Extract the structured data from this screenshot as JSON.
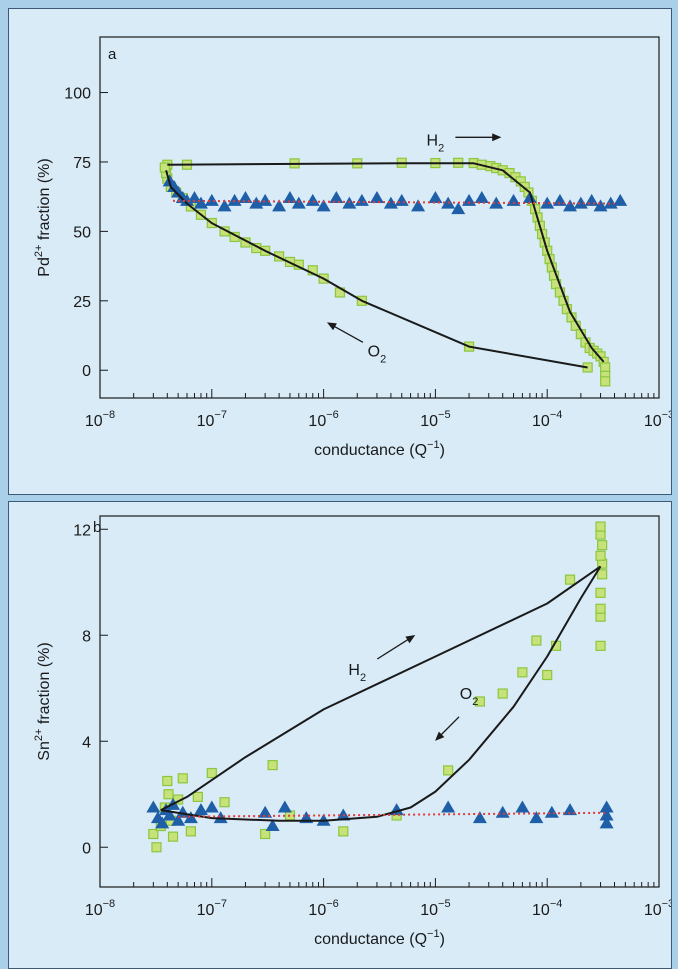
{
  "colors": {
    "background": "#a9cfe9",
    "panel": "#d8ebf7",
    "square_fill": "#c8e27a",
    "square_stroke": "#8cc63f",
    "triangle": "#1f5fa8",
    "fit_black": "#1a1a1a",
    "fit_red": "#e03a3a"
  },
  "chart_data": [
    {
      "panel_label": "a",
      "type": "scatter",
      "x_scale": "log",
      "xlim": [
        "1e-8",
        "1e-3"
      ],
      "ylim": [
        -10,
        120
      ],
      "yticks": [
        0,
        25,
        50,
        75,
        100
      ],
      "ylabel_pre": "Pd",
      "ylabel_sup": "2+",
      "ylabel_post": " fraction (%)",
      "xlabel_pre": "conductance (Q",
      "xlabel_sup": "−1",
      "xlabel_post": ")",
      "xtick_labels": [
        {
          "base": "10",
          "exp": "−8",
          "x": "1e-8"
        },
        {
          "base": "10",
          "exp": "−7",
          "x": "1e-7"
        },
        {
          "base": "10",
          "exp": "−6",
          "x": "1e-6"
        },
        {
          "base": "10",
          "exp": "−5",
          "x": "1e-5"
        },
        {
          "base": "10",
          "exp": "−4",
          "x": "1e-4"
        },
        {
          "base": "10",
          "exp": "−3",
          "x": "1e-3"
        }
      ],
      "annotations": [
        {
          "label_base": "H",
          "label_sub": "2",
          "at": [
            "1e-5",
            81
          ],
          "arrow": "right"
        },
        {
          "label_base": "O",
          "label_sub": "2",
          "at": [
            "3e-6",
            5
          ],
          "arrow": "up-left"
        }
      ],
      "series": [
        {
          "marker": "square",
          "points": [
            [
              "4e-8",
              74
            ],
            [
              "6e-8",
              74
            ],
            [
              "5.5e-7",
              74.5
            ],
            [
              "2e-6",
              74.5
            ],
            [
              "5e-6",
              74.7
            ],
            [
              "1e-5",
              74.6
            ],
            [
              "1.6e-5",
              74.7
            ],
            [
              "2.2e-5",
              74.6
            ],
            [
              "2.6e-5",
              74
            ],
            [
              "3.1e-5",
              73.5
            ],
            [
              "3.5e-5",
              72.8
            ],
            [
              "4e-5",
              72
            ],
            [
              "4.6e-5",
              71
            ],
            [
              "5.2e-5",
              69.5
            ],
            [
              "5.8e-5",
              68
            ],
            [
              "6.3e-5",
              66
            ],
            [
              "6.8e-5",
              64
            ],
            [
              "7.3e-5",
              61
            ],
            [
              "7.8e-5",
              58
            ],
            [
              "8.2e-5",
              55
            ],
            [
              "8.6e-5",
              52
            ],
            [
              "9e-5",
              49
            ],
            [
              "9.5e-5",
              46
            ],
            [
              "1e-4",
              43
            ],
            [
              "1.05e-4",
              40
            ],
            [
              "1.1e-4",
              37
            ],
            [
              "1.15e-4",
              34
            ],
            [
              "1.2e-4",
              31
            ],
            [
              "1.3e-4",
              28
            ],
            [
              "1.4e-4",
              25
            ],
            [
              "1.5e-4",
              22
            ],
            [
              "1.65e-4",
              19
            ],
            [
              "1.8e-4",
              16
            ],
            [
              "2e-4",
              13
            ],
            [
              "2.2e-4",
              10
            ],
            [
              "2.4e-4",
              8
            ],
            [
              "2.6e-4",
              7
            ],
            [
              "2.8e-4",
              6
            ],
            [
              "3e-4",
              5
            ],
            [
              "3.2e-4",
              3
            ],
            [
              "3.3e-4",
              1
            ],
            [
              "3.3e-4",
              -2
            ],
            [
              "3.3e-4",
              -4
            ],
            [
              "2.3e-4",
              1
            ],
            [
              "2e-5",
              8.5
            ],
            [
              "2.2e-6",
              25
            ],
            [
              "1.4e-6",
              28
            ],
            [
              "1e-6",
              33
            ],
            [
              "8e-7",
              36
            ],
            [
              "6e-7",
              38
            ],
            [
              "5e-7",
              39
            ],
            [
              "4e-7",
              41
            ],
            [
              "3e-7",
              43
            ],
            [
              "2.5e-7",
              44
            ],
            [
              "2e-7",
              46
            ],
            [
              "1.6e-7",
              48
            ],
            [
              "1.3e-7",
              50
            ],
            [
              "1e-7",
              53
            ],
            [
              "8e-8",
              56
            ],
            [
              "6.5e-8",
              59
            ],
            [
              "5.5e-8",
              62
            ],
            [
              "4.8e-8",
              64
            ],
            [
              "4.3e-8",
              66
            ],
            [
              "4e-8",
              69
            ],
            [
              "3.9e-8",
              71
            ],
            [
              "3.8e-8",
              73
            ]
          ]
        },
        {
          "marker": "triangle",
          "points": [
            [
              "4.2e-8",
              68
            ],
            [
              "4.6e-8",
              66
            ],
            [
              "5e-8",
              64
            ],
            [
              "5.5e-8",
              62
            ],
            [
              "6e-8",
              61
            ],
            [
              "7e-8",
              62
            ],
            [
              "8e-8",
              60
            ],
            [
              "1e-7",
              61
            ],
            [
              "1.3e-7",
              59
            ],
            [
              "1.6e-7",
              61
            ],
            [
              "2e-7",
              62
            ],
            [
              "2.5e-7",
              60
            ],
            [
              "3e-7",
              61
            ],
            [
              "4e-7",
              59
            ],
            [
              "5e-7",
              62
            ],
            [
              "6e-7",
              60
            ],
            [
              "8e-7",
              61
            ],
            [
              "1e-6",
              59
            ],
            [
              "1.3e-6",
              62
            ],
            [
              "1.7e-6",
              60
            ],
            [
              "2.2e-6",
              61
            ],
            [
              "3e-6",
              62
            ],
            [
              "4e-6",
              60
            ],
            [
              "5e-6",
              61
            ],
            [
              "7e-6",
              59
            ],
            [
              "1e-5",
              62
            ],
            [
              "1.3e-5",
              60
            ],
            [
              "1.6e-5",
              58
            ],
            [
              "2e-5",
              61
            ],
            [
              "2.6e-5",
              62
            ],
            [
              "3.5e-5",
              60
            ],
            [
              "5e-5",
              61
            ],
            [
              "7e-5",
              62
            ],
            [
              "1e-4",
              60
            ],
            [
              "1.3e-4",
              61
            ],
            [
              "1.6e-4",
              59
            ],
            [
              "2e-4",
              60
            ],
            [
              "2.5e-4",
              61
            ],
            [
              "3e-4",
              59
            ],
            [
              "3.7e-4",
              60
            ],
            [
              "4.5e-4",
              61
            ]
          ]
        }
      ],
      "curves": [
        {
          "style": "solid-black",
          "points": [
            [
              "4e-8",
              74
            ],
            [
              "5e-6",
              74.5
            ],
            [
              "2.2e-5",
              74.5
            ],
            [
              "4e-5",
              72
            ],
            [
              "7e-5",
              64
            ],
            [
              "1e-4",
              43
            ],
            [
              "1.6e-4",
              21
            ],
            [
              "2.5e-4",
              8
            ],
            [
              "3.2e-4",
              3
            ]
          ]
        },
        {
          "style": "solid-black",
          "points": [
            [
              "2.3e-4",
              1
            ],
            [
              "2e-5",
              8.5
            ],
            [
              "2.2e-6",
              25
            ],
            [
              "1e-6",
              33
            ],
            [
              "3e-7",
              43
            ],
            [
              "1e-7",
              53
            ],
            [
              "6e-8",
              60
            ],
            [
              "4.3e-8",
              66
            ],
            [
              "3.9e-8",
              72
            ]
          ]
        },
        {
          "style": "dotted-red",
          "points": [
            [
              "4.5e-8",
              61
            ],
            [
              "4e-4",
              60
            ]
          ]
        }
      ]
    },
    {
      "panel_label": "b",
      "type": "scatter",
      "x_scale": "log",
      "xlim": [
        "1e-8",
        "1e-3"
      ],
      "ylim": [
        -1.5,
        12.5
      ],
      "yticks": [
        0,
        4,
        8,
        12
      ],
      "ylabel_pre": "Sn",
      "ylabel_sup": "2+",
      "ylabel_post": " fraction (%)",
      "xlabel_pre": "conductance (Q",
      "xlabel_sup": "−1",
      "xlabel_post": ")",
      "xtick_labels": [
        {
          "base": "10",
          "exp": "−8",
          "x": "1e-8"
        },
        {
          "base": "10",
          "exp": "−7",
          "x": "1e-7"
        },
        {
          "base": "10",
          "exp": "−6",
          "x": "1e-6"
        },
        {
          "base": "10",
          "exp": "−5",
          "x": "1e-5"
        },
        {
          "base": "10",
          "exp": "−4",
          "x": "1e-4"
        },
        {
          "base": "10",
          "exp": "−3",
          "x": "1e-3"
        }
      ],
      "annotations": [
        {
          "label_base": "H",
          "label_sub": "2",
          "at": [
            "2e-6",
            6.5
          ],
          "arrow": "up-right"
        },
        {
          "label_base": "O",
          "label_sub": "2",
          "at": [
            "2e-5",
            5.6
          ],
          "arrow": "down-left"
        }
      ],
      "series": [
        {
          "marker": "square",
          "points": [
            [
              "3e-8",
              0.5
            ],
            [
              "3.2e-8",
              0.0
            ],
            [
              "3.5e-8",
              0.8
            ],
            [
              "3.8e-8",
              1.5
            ],
            [
              "4e-8",
              2.5
            ],
            [
              "4.1e-8",
              2.0
            ],
            [
              "4.3e-8",
              1.0
            ],
            [
              "4.5e-8",
              0.4
            ],
            [
              "5e-8",
              1.8
            ],
            [
              "5.5e-8",
              2.6
            ],
            [
              "6.5e-8",
              0.6
            ],
            [
              "7.5e-8",
              1.9
            ],
            [
              "1e-7",
              2.8
            ],
            [
              "1.3e-7",
              1.7
            ],
            [
              "3.5e-7",
              3.1
            ],
            [
              "3e-7",
              0.5
            ],
            [
              "5e-7",
              1.2
            ],
            [
              "1.5e-6",
              0.6
            ],
            [
              "4.5e-6",
              1.2
            ],
            [
              "1.3e-5",
              2.9
            ],
            [
              "2.5e-5",
              5.5
            ],
            [
              "4e-5",
              5.8
            ],
            [
              "6e-5",
              6.6
            ],
            [
              "8e-5",
              7.8
            ],
            [
              "1e-4",
              6.5
            ],
            [
              "1.2e-4",
              7.6
            ],
            [
              "1.6e-4",
              10.1
            ],
            [
              "3e-4",
              7.6
            ],
            [
              "3e-4",
              8.7
            ],
            [
              "3e-4",
              9.0
            ],
            [
              "3e-4",
              9.6
            ],
            [
              "3.1e-4",
              10.3
            ],
            [
              "3.1e-4",
              10.7
            ],
            [
              "3e-4",
              11.0
            ],
            [
              "3.1e-4",
              11.4
            ],
            [
              "3e-4",
              11.8
            ],
            [
              "3e-4",
              12.1
            ]
          ]
        },
        {
          "marker": "triangle",
          "points": [
            [
              "3e-8",
              1.5
            ],
            [
              "3.3e-8",
              1.1
            ],
            [
              "3.6e-8",
              0.9
            ],
            [
              "3.9e-8",
              1.4
            ],
            [
              "4.2e-8",
              1.2
            ],
            [
              "4.5e-8",
              1.6
            ],
            [
              "5e-8",
              1.0
            ],
            [
              "5.5e-8",
              1.3
            ],
            [
              "6.5e-8",
              1.1
            ],
            [
              "8e-8",
              1.4
            ],
            [
              "1e-7",
              1.5
            ],
            [
              "1.2e-7",
              1.1
            ],
            [
              "3e-7",
              1.3
            ],
            [
              "3.5e-7",
              0.8
            ],
            [
              "4.5e-7",
              1.5
            ],
            [
              "7e-7",
              1.1
            ],
            [
              "1e-6",
              1.0
            ],
            [
              "1.5e-6",
              1.2
            ],
            [
              "4.5e-6",
              1.4
            ],
            [
              "1.3e-5",
              1.5
            ],
            [
              "2.5e-5",
              1.1
            ],
            [
              "4e-5",
              1.3
            ],
            [
              "6e-5",
              1.5
            ],
            [
              "8e-5",
              1.1
            ],
            [
              "1.1e-4",
              1.3
            ],
            [
              "1.6e-4",
              1.4
            ],
            [
              "3.4e-4",
              1.5
            ],
            [
              "3.4e-4",
              1.2
            ],
            [
              "3.4e-4",
              0.9
            ]
          ]
        }
      ],
      "curves": [
        {
          "style": "solid-black",
          "points": [
            [
              "3.5e-8",
              1.4
            ],
            [
              "6e-8",
              1.9
            ],
            [
              "2e-7",
              3.4
            ],
            [
              "1e-6",
              5.2
            ],
            [
              "1e-5",
              7.2
            ],
            [
              "1e-4",
              9.2
            ],
            [
              "3e-4",
              10.6
            ]
          ]
        },
        {
          "style": "solid-black",
          "points": [
            [
              "3.5e-8",
              1.4
            ],
            [
              "1e-7",
              1.1
            ],
            [
              "4e-7",
              1.0
            ],
            [
              "1e-6",
              1.0
            ],
            [
              "3e-6",
              1.15
            ],
            [
              "6e-6",
              1.5
            ],
            [
              "1e-5",
              2.1
            ],
            [
              "2e-5",
              3.3
            ],
            [
              "5e-5",
              5.3
            ],
            [
              "1e-4",
              7.2
            ],
            [
              "2e-4",
              9.4
            ],
            [
              "3e-4",
              10.6
            ]
          ]
        },
        {
          "style": "dotted-red",
          "points": [
            [
              "5e-8",
              1.15
            ],
            [
              "3.4e-4",
              1.3
            ]
          ]
        }
      ]
    }
  ]
}
